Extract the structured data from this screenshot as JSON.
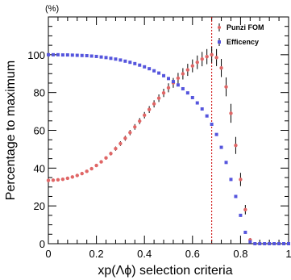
{
  "chart_data": {
    "type": "scatter",
    "title": "",
    "xlabel": "xp(Λϕ) selection criteria",
    "ylabel": "Percentage to maximum",
    "y_unit": "(%)",
    "xlim": [
      0,
      1
    ],
    "ylim": [
      0,
      120
    ],
    "x_ticks": [
      0,
      0.2,
      0.4,
      0.6,
      0.8,
      1
    ],
    "x_tick_labels": [
      "0",
      "0.2",
      "0.4",
      "0.6",
      "0.8",
      "1"
    ],
    "y_ticks": [
      0,
      20,
      40,
      60,
      80,
      100
    ],
    "y_tick_labels": [
      "0",
      "20",
      "40",
      "60",
      "80",
      "100"
    ],
    "grid": false,
    "legend_position": "top-right",
    "cut_line": {
      "x": 0.68,
      "color": "#cc0000"
    },
    "series": [
      {
        "name": "Punzi FOM",
        "color": "#e06666",
        "marker": "circle",
        "error_bars": true,
        "x": [
          0.0,
          0.02,
          0.04,
          0.06,
          0.08,
          0.1,
          0.12,
          0.14,
          0.16,
          0.18,
          0.2,
          0.22,
          0.24,
          0.26,
          0.28,
          0.3,
          0.32,
          0.34,
          0.36,
          0.38,
          0.4,
          0.42,
          0.44,
          0.46,
          0.48,
          0.5,
          0.52,
          0.54,
          0.56,
          0.58,
          0.6,
          0.62,
          0.64,
          0.66,
          0.68,
          0.7,
          0.72,
          0.74,
          0.76,
          0.78,
          0.8,
          0.82,
          0.84
        ],
        "y": [
          33.5,
          33.6,
          33.8,
          34.1,
          34.6,
          35.3,
          36.1,
          37.1,
          38.3,
          39.7,
          41.4,
          43.3,
          45.4,
          47.7,
          50.3,
          53.0,
          55.8,
          58.8,
          61.8,
          64.9,
          68.0,
          71.0,
          74.0,
          77.0,
          79.8,
          82.5,
          85.1,
          87.6,
          89.9,
          92.0,
          94.1,
          96.0,
          97.7,
          99.0,
          100.0,
          98.5,
          93.0,
          83.0,
          69.0,
          52.0,
          34.0,
          18.0,
          2.0
        ],
        "err": [
          0.4,
          0.4,
          0.4,
          0.4,
          0.5,
          0.5,
          0.5,
          0.6,
          0.6,
          0.7,
          0.7,
          0.8,
          0.9,
          1.0,
          1.1,
          1.2,
          1.3,
          1.4,
          1.5,
          1.6,
          1.7,
          1.8,
          1.9,
          2.0,
          2.2,
          2.4,
          2.6,
          2.8,
          3.0,
          3.2,
          3.4,
          3.6,
          3.8,
          4.0,
          4.2,
          4.5,
          4.8,
          5.0,
          5.0,
          4.5,
          3.5,
          2.5,
          1.0
        ]
      },
      {
        "name": "Efficency",
        "color": "#5555dd",
        "marker": "square",
        "error_bars": false,
        "x": [
          0.0,
          0.02,
          0.04,
          0.06,
          0.08,
          0.1,
          0.12,
          0.14,
          0.16,
          0.18,
          0.2,
          0.22,
          0.24,
          0.26,
          0.28,
          0.3,
          0.32,
          0.34,
          0.36,
          0.38,
          0.4,
          0.42,
          0.44,
          0.46,
          0.48,
          0.5,
          0.52,
          0.54,
          0.56,
          0.58,
          0.6,
          0.62,
          0.64,
          0.66,
          0.68,
          0.7,
          0.72,
          0.74,
          0.76,
          0.78,
          0.8,
          0.82,
          0.84,
          0.86,
          0.88,
          0.9,
          0.92,
          0.94,
          0.96,
          0.98,
          1.0
        ],
        "y": [
          100.0,
          100.0,
          100.0,
          99.9,
          99.9,
          99.8,
          99.7,
          99.6,
          99.5,
          99.3,
          99.1,
          98.8,
          98.5,
          98.1,
          97.7,
          97.2,
          96.6,
          96.0,
          95.3,
          94.5,
          93.6,
          92.6,
          91.5,
          90.3,
          88.9,
          87.4,
          85.8,
          84.0,
          82.0,
          79.8,
          77.3,
          74.5,
          71.3,
          67.6,
          63.2,
          57.8,
          51.0,
          43.0,
          34.0,
          25.0,
          15.0,
          6.0,
          1.0,
          0.0,
          0.0,
          0.0,
          0.0,
          0.0,
          0.0,
          0.0,
          0.0
        ]
      }
    ]
  }
}
